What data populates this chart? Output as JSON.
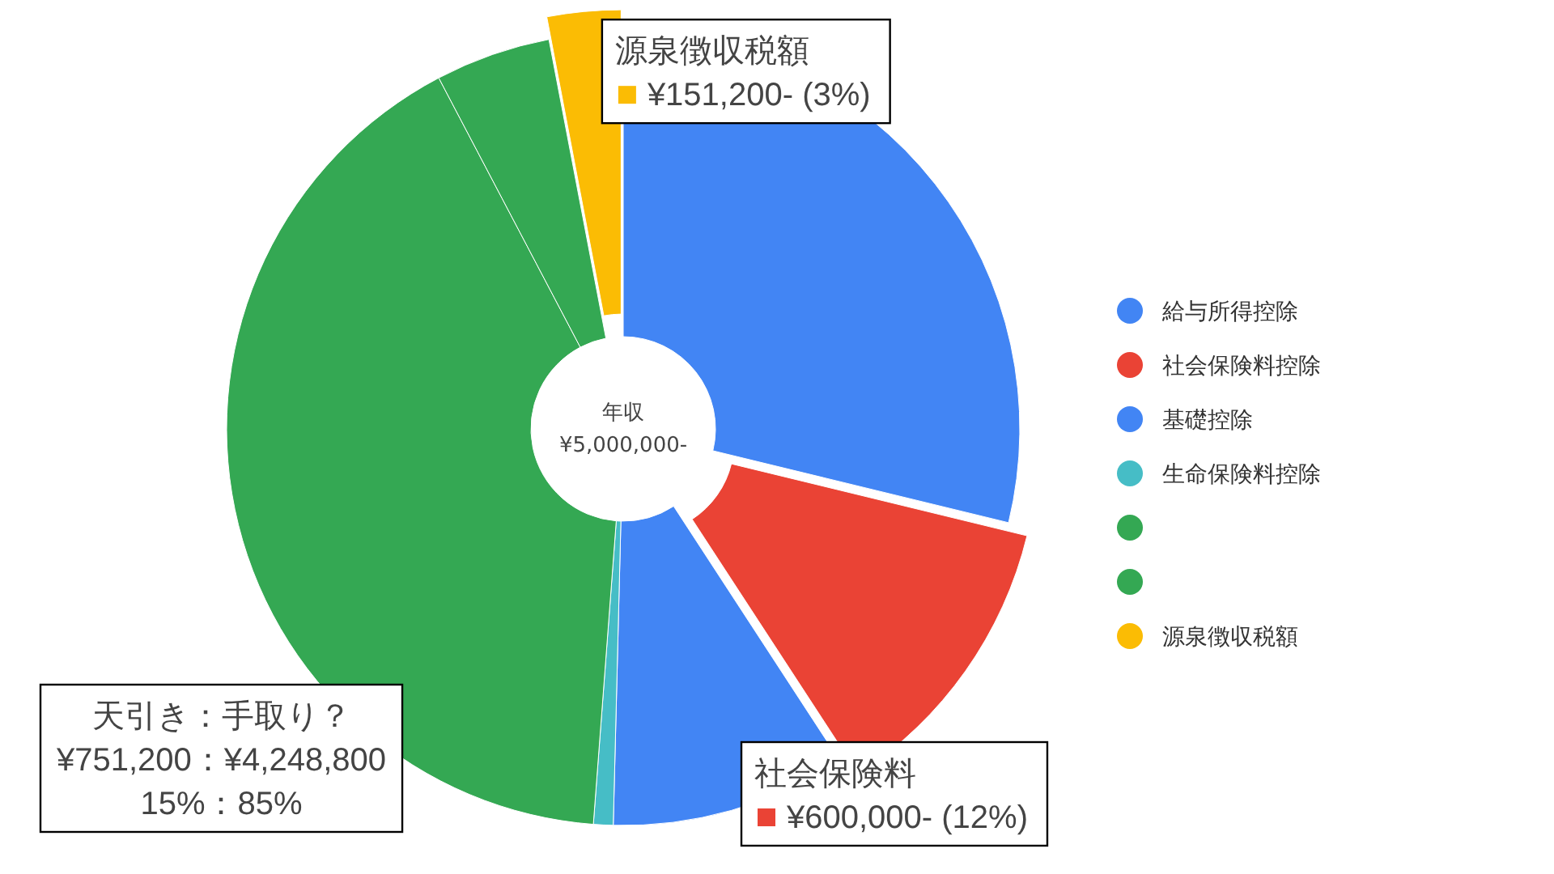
{
  "chart_data": {
    "type": "donut",
    "categories": [
      "給与所得控除",
      "社会保険料控除",
      "基礎控除",
      "生命保険料控除",
      null,
      null,
      "源泉徴収税額"
    ],
    "values": [
      28.8,
      12,
      9.6,
      0.8,
      41.1,
      4.7,
      3
    ],
    "colors": [
      "#4285f4",
      "#ea4335",
      "#4285f4",
      "#46bdc6",
      "#34a853",
      "#34a853",
      "#fbbc04"
    ],
    "legend": "right",
    "annotations": [
      {
        "text": "源泉徴収税額\n¥151,200- (3%)",
        "x": "源泉徴収税額"
      },
      {
        "text": "社会保険料\n¥600,000- (12%)",
        "x": "社会保険料控除"
      },
      "年収\n¥5,000,000-",
      "天引き：手取り？\n¥751,200：¥4,248,800\n15%：85%"
    ]
  }
}
